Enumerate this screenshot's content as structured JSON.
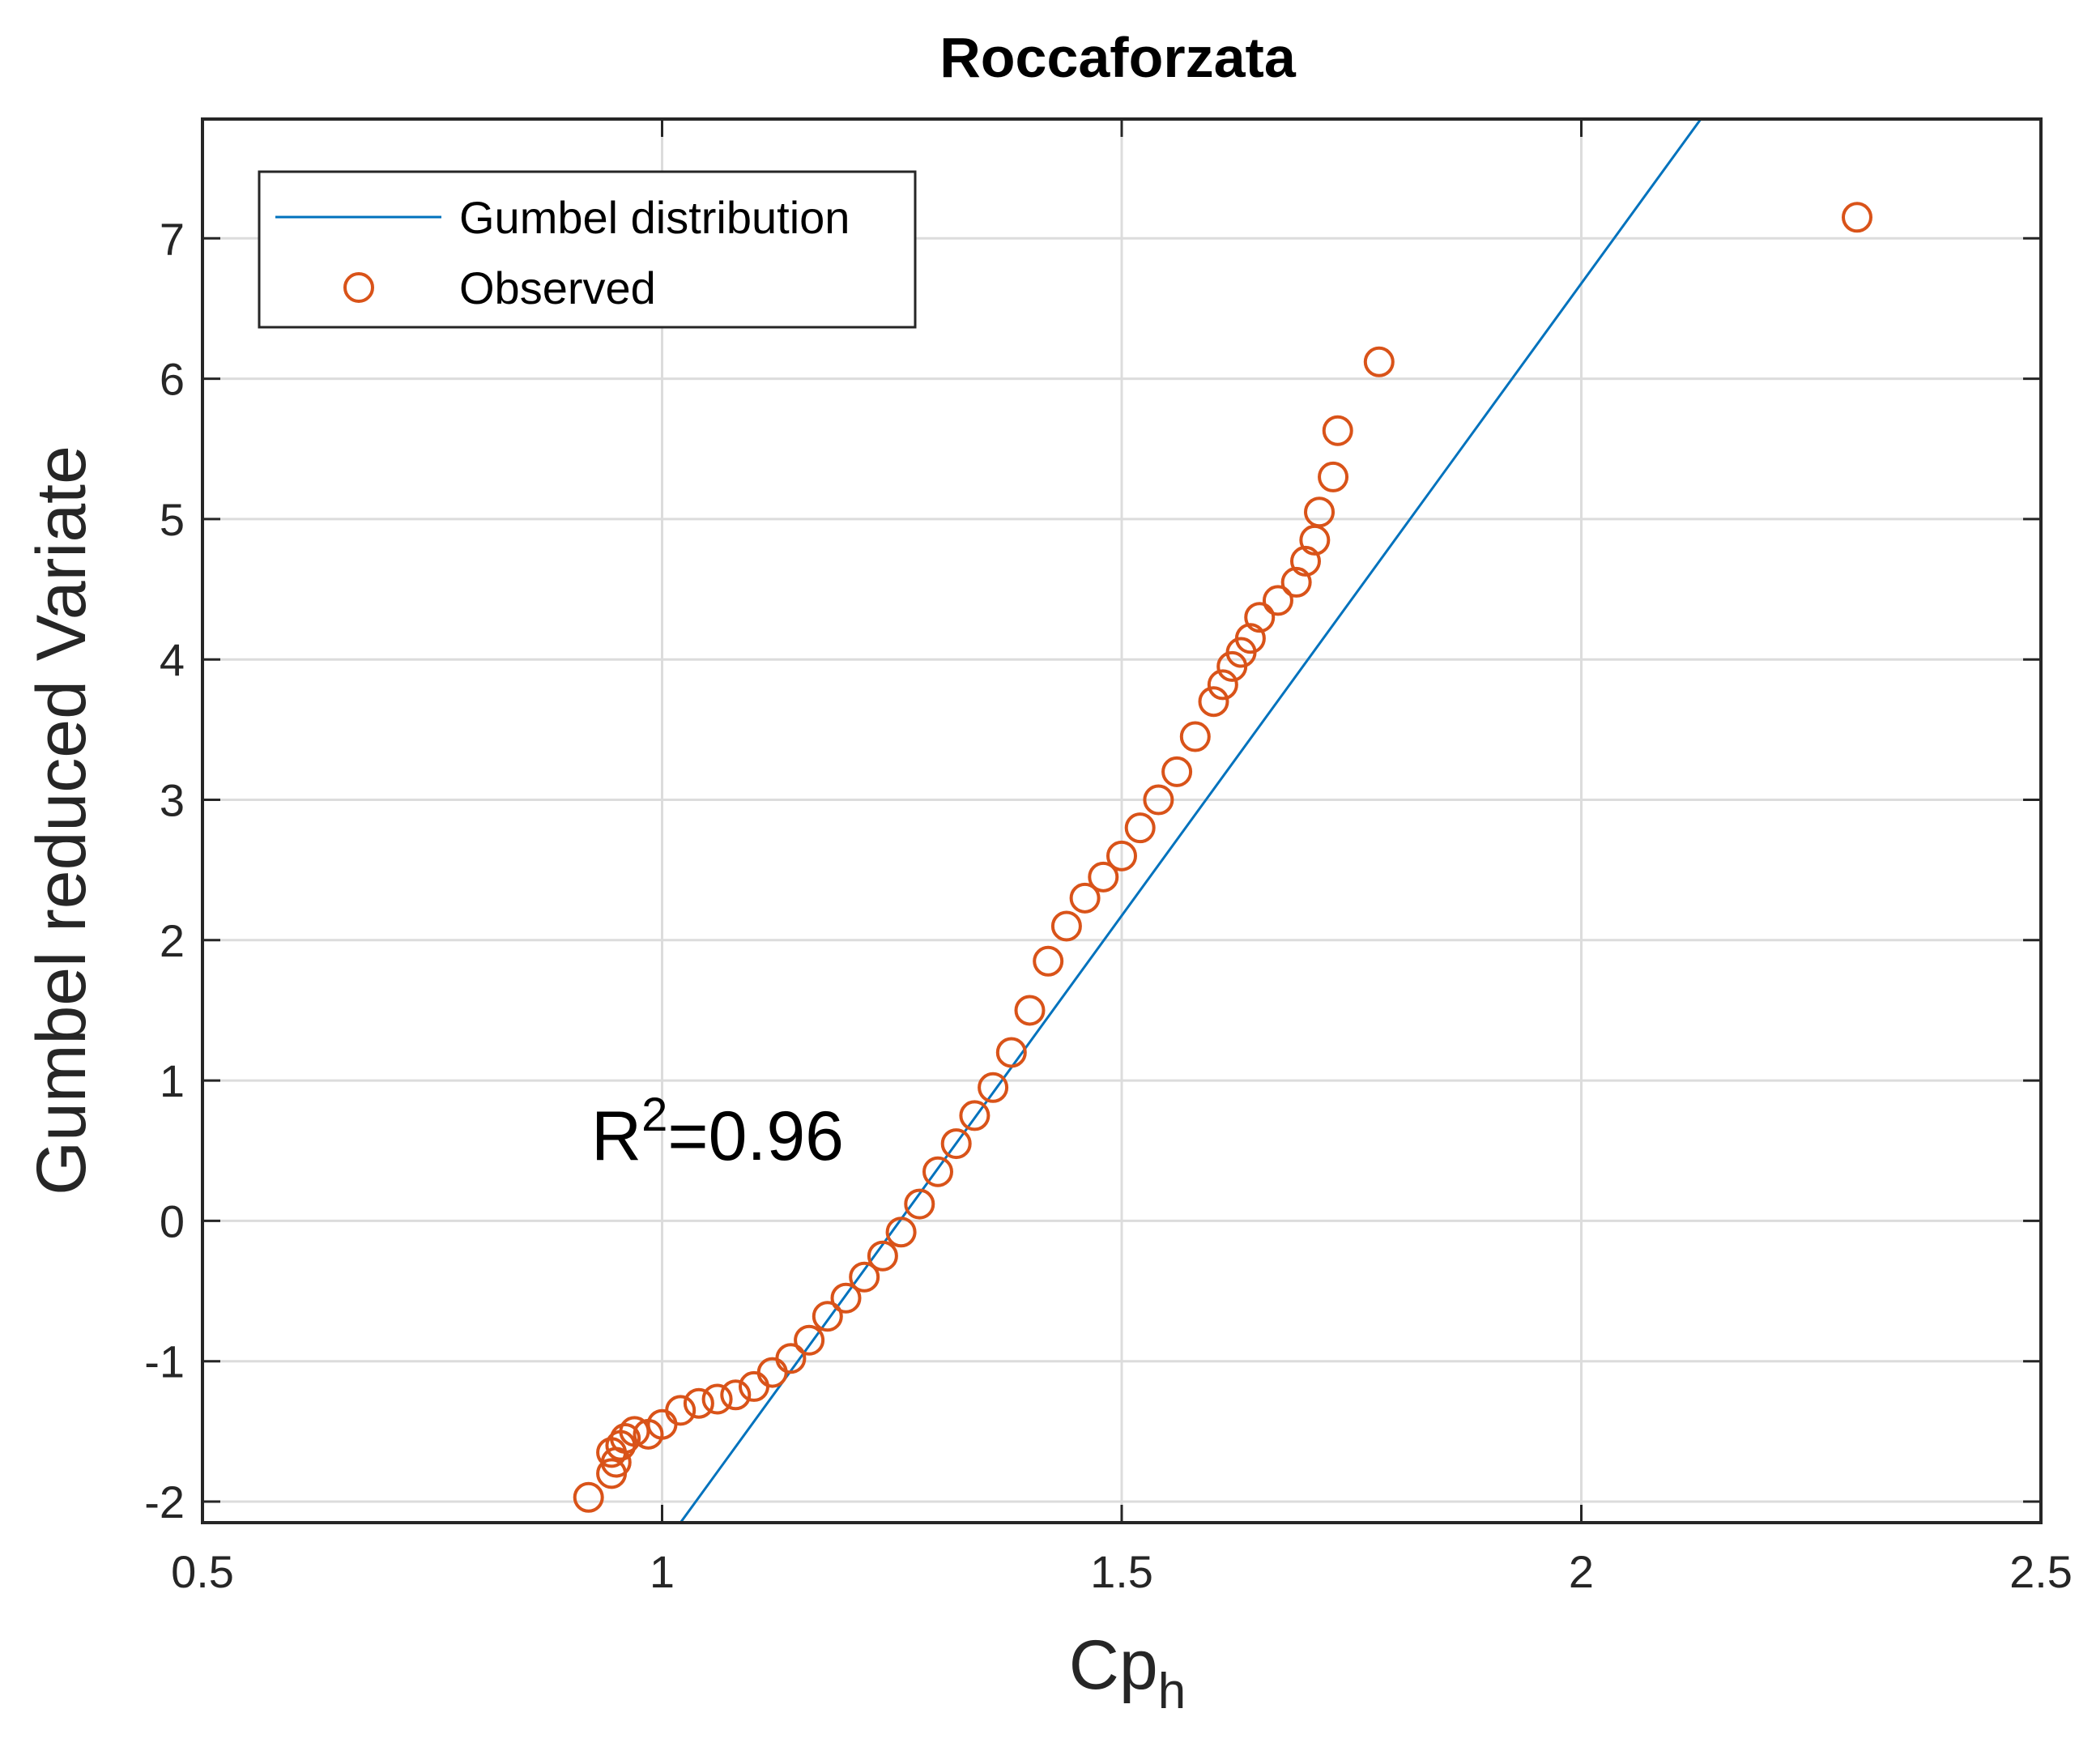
{
  "chart_data": {
    "type": "scatter",
    "title": "Roccaforzata",
    "xlabel_main": "Cp",
    "xlabel_sub": "h",
    "ylabel": "Gumbel reduced Variate",
    "xlim": [
      0.5,
      2.5
    ],
    "ylim": [
      -2.15,
      7.85
    ],
    "xticks": [
      0.5,
      1,
      1.5,
      2,
      2.5
    ],
    "xtick_labels": [
      "0.5",
      "1",
      "1.5",
      "2",
      "2.5"
    ],
    "yticks": [
      -2,
      -1,
      0,
      1,
      2,
      3,
      4,
      5,
      6,
      7
    ],
    "ytick_labels": [
      "-2",
      "-1",
      "0",
      "1",
      "2",
      "3",
      "4",
      "5",
      "6",
      "7"
    ],
    "grid": true,
    "legend_position": "top-left",
    "annotation": {
      "base": "R",
      "sup": "2",
      "rest": "=0.96"
    },
    "series": [
      {
        "name": "Gumbel distribution",
        "kind": "line",
        "color": "#0072BD",
        "x": [
          1.02,
          2.13
        ],
        "y": [
          -2.15,
          7.85
        ]
      },
      {
        "name": "Observed",
        "kind": "markers",
        "color": "#D95319",
        "x": [
          0.92,
          0.945,
          0.95,
          0.945,
          0.955,
          0.96,
          0.97,
          0.985,
          1.0,
          1.02,
          1.04,
          1.06,
          1.08,
          1.1,
          1.12,
          1.14,
          1.16,
          1.18,
          1.2,
          1.22,
          1.24,
          1.26,
          1.28,
          1.3,
          1.32,
          1.34,
          1.36,
          1.38,
          1.4,
          1.42,
          1.44,
          1.46,
          1.48,
          1.5,
          1.52,
          1.54,
          1.56,
          1.58,
          1.6,
          1.61,
          1.62,
          1.63,
          1.64,
          1.65,
          1.67,
          1.69,
          1.7,
          1.71,
          1.715,
          1.73,
          1.735,
          1.78,
          2.3
        ],
        "y": [
          -1.97,
          -1.8,
          -1.72,
          -1.65,
          -1.6,
          -1.55,
          -1.5,
          -1.52,
          -1.45,
          -1.35,
          -1.3,
          -1.27,
          -1.24,
          -1.18,
          -1.08,
          -0.98,
          -0.85,
          -0.68,
          -0.55,
          -0.4,
          -0.25,
          -0.08,
          0.12,
          0.35,
          0.55,
          0.75,
          0.95,
          1.2,
          1.5,
          1.85,
          2.1,
          2.3,
          2.45,
          2.6,
          2.8,
          3.0,
          3.2,
          3.45,
          3.7,
          3.82,
          3.95,
          4.05,
          4.15,
          4.3,
          4.42,
          4.55,
          4.7,
          4.85,
          5.05,
          5.3,
          5.63,
          6.12,
          7.15
        ]
      }
    ]
  }
}
